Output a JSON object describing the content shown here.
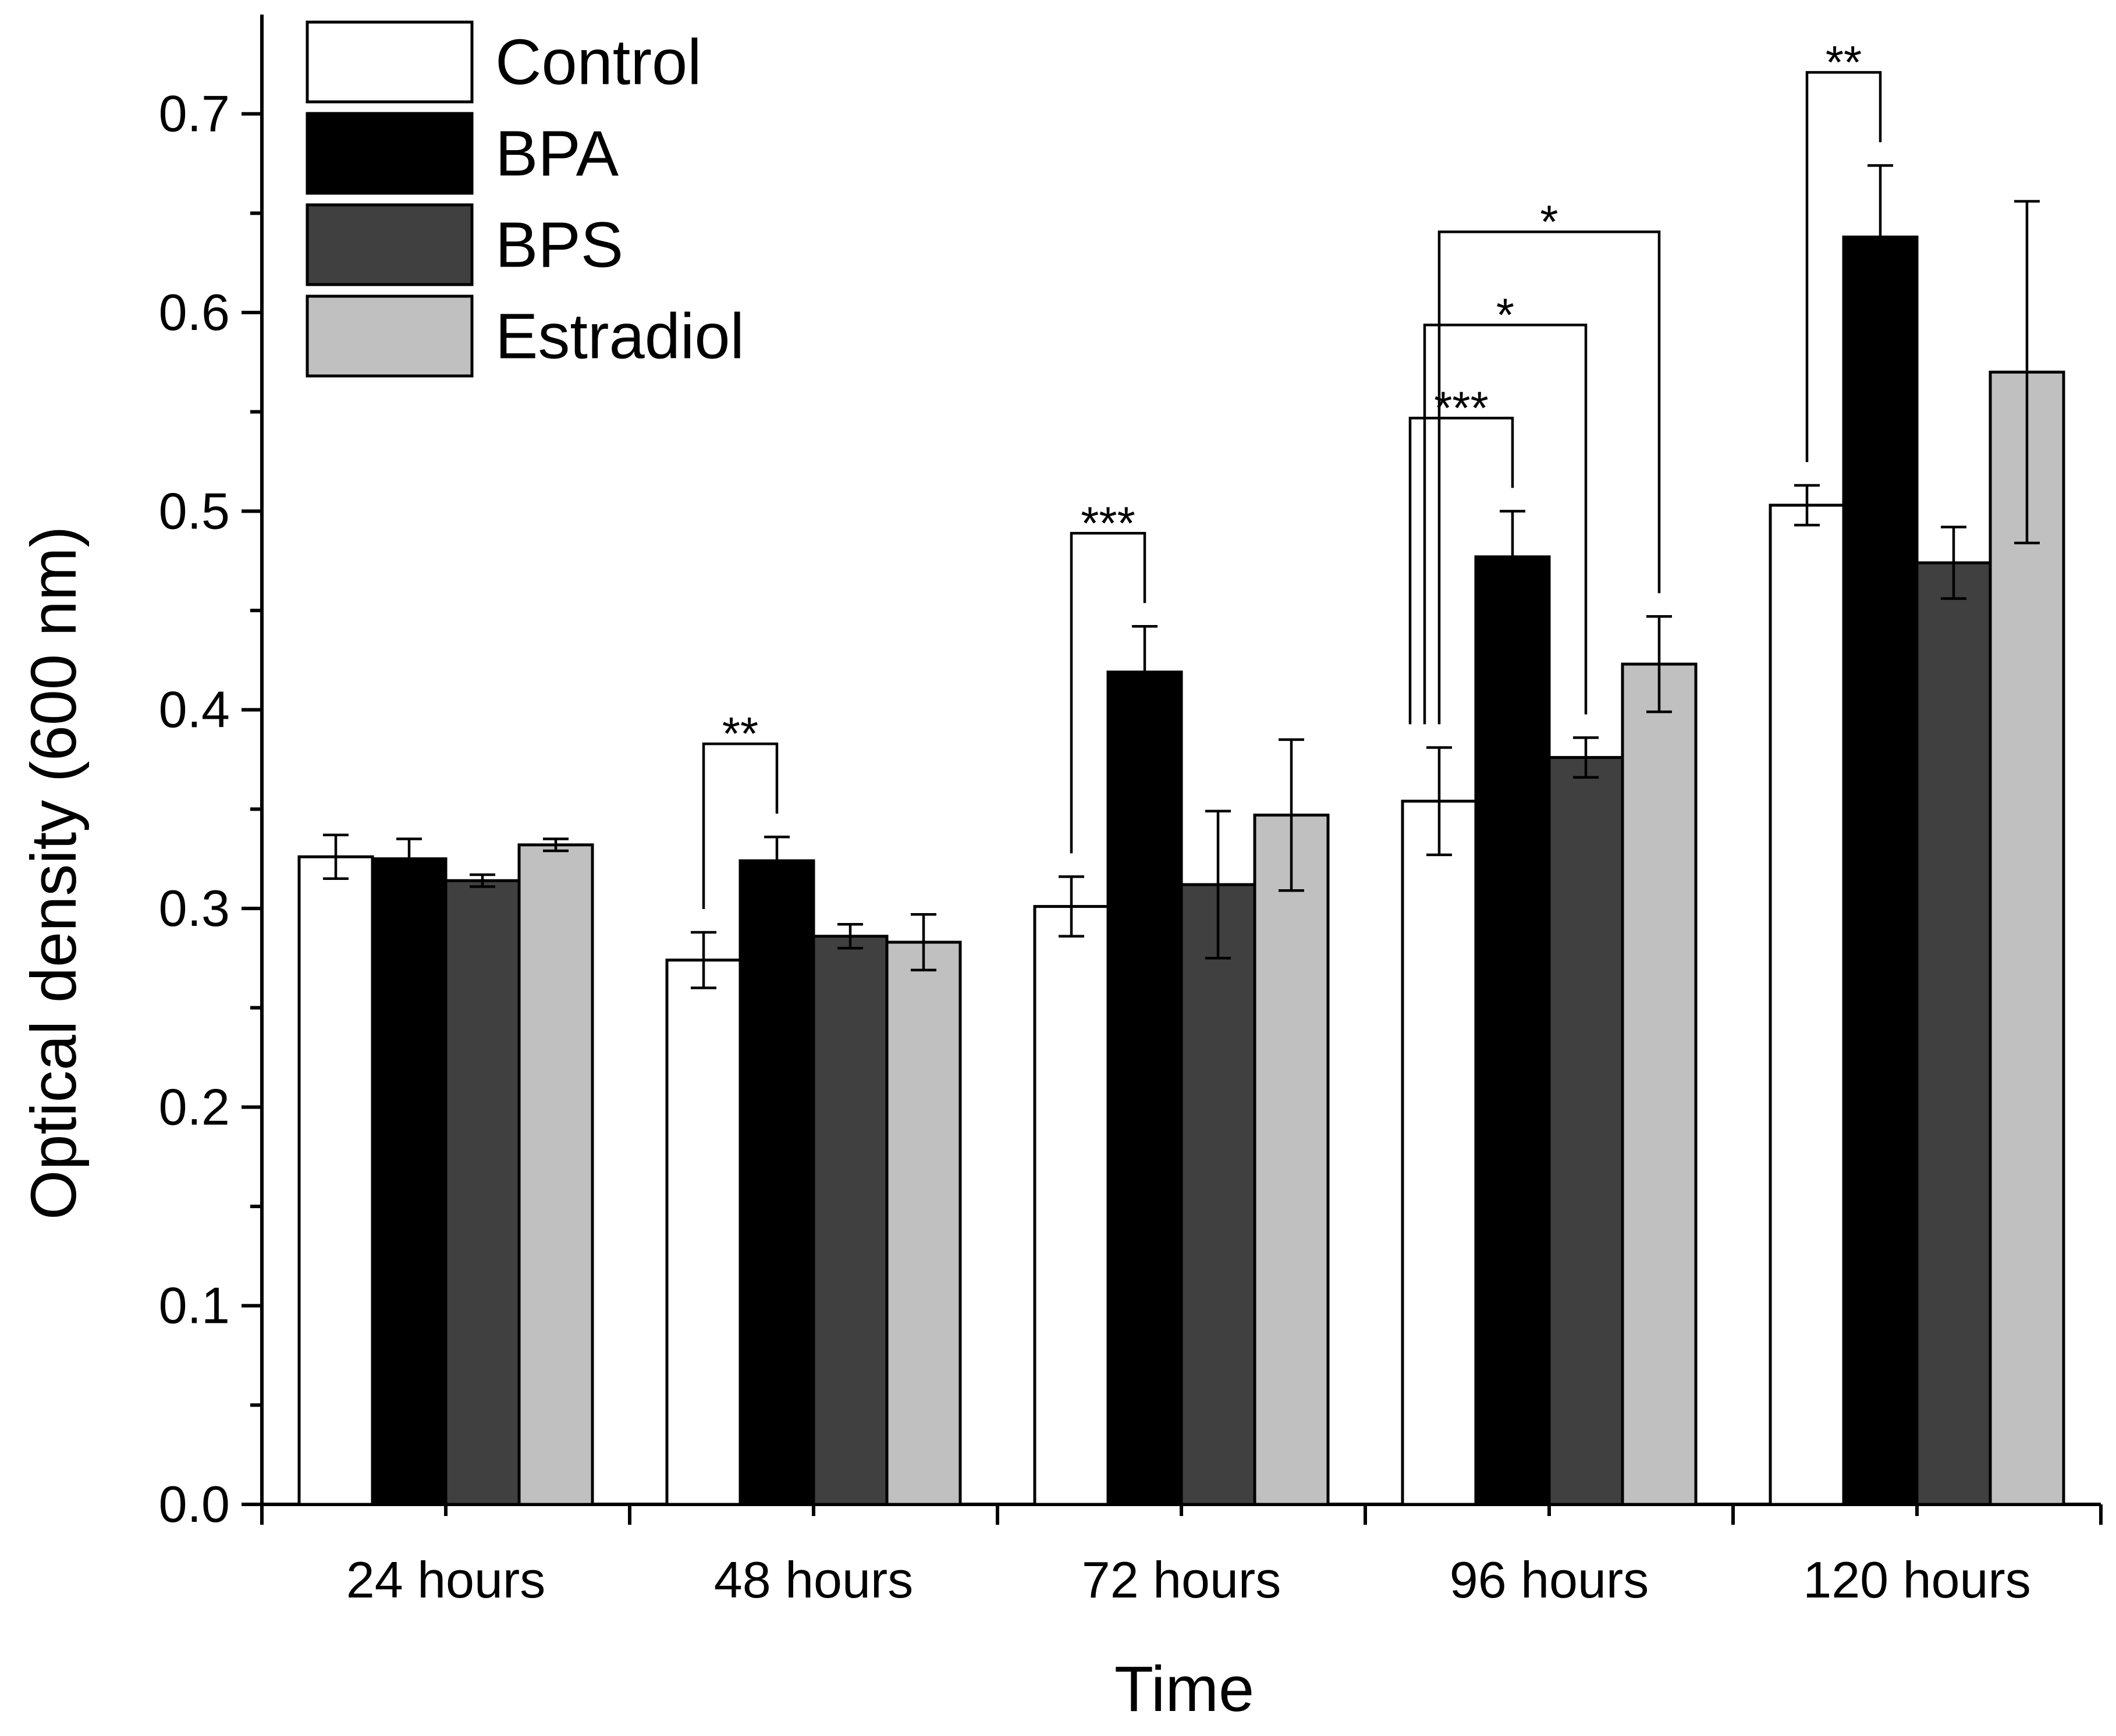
{
  "chart_data": {
    "type": "bar",
    "title": "",
    "xlabel": "Time",
    "ylabel": "Optical density (600 nm)",
    "ylim": [
      0,
      0.75
    ],
    "yticks": [
      0.0,
      0.1,
      0.2,
      0.3,
      0.4,
      0.5,
      0.6,
      0.7
    ],
    "ytick_labels": [
      "0.0",
      "0.1",
      "0.2",
      "0.3",
      "0.4",
      "0.5",
      "0.6",
      "0.7"
    ],
    "categories": [
      "24 hours",
      "48 hours",
      "72 hours",
      "96 hours",
      "120 hours"
    ],
    "legend_position": "top-left",
    "grid": false,
    "series": [
      {
        "name": "Control",
        "color": "#ffffff",
        "values": [
          0.326,
          0.274,
          0.301,
          0.354,
          0.503
        ],
        "errors": [
          0.011,
          0.014,
          0.015,
          0.027,
          0.01
        ]
      },
      {
        "name": "BPA",
        "color": "#000000",
        "values": [
          0.325,
          0.324,
          0.419,
          0.477,
          0.638
        ],
        "errors": [
          0.01,
          0.012,
          0.023,
          0.023,
          0.036
        ]
      },
      {
        "name": "BPS",
        "color": "#404040",
        "values": [
          0.314,
          0.286,
          0.312,
          0.376,
          0.474
        ],
        "errors": [
          0.003,
          0.006,
          0.037,
          0.01,
          0.018
        ]
      },
      {
        "name": "Estradiol",
        "color": "#c0c0c0",
        "values": [
          0.332,
          0.283,
          0.347,
          0.423,
          0.57
        ],
        "errors": [
          0.003,
          0.014,
          0.038,
          0.024,
          0.086
        ]
      }
    ],
    "significance": [
      {
        "category": "48 hours",
        "from": "Control",
        "to": "BPA",
        "label": "**"
      },
      {
        "category": "72 hours",
        "from": "Control",
        "to": "BPA",
        "label": "***"
      },
      {
        "category": "96 hours",
        "from": "Control",
        "to": "BPA",
        "label": "***"
      },
      {
        "category": "96 hours",
        "from": "Control",
        "to": "BPS",
        "label": "*"
      },
      {
        "category": "96 hours",
        "from": "Control",
        "to": "Estradiol",
        "label": "*"
      },
      {
        "category": "120 hours",
        "from": "Control",
        "to": "BPA",
        "label": "**"
      }
    ]
  }
}
